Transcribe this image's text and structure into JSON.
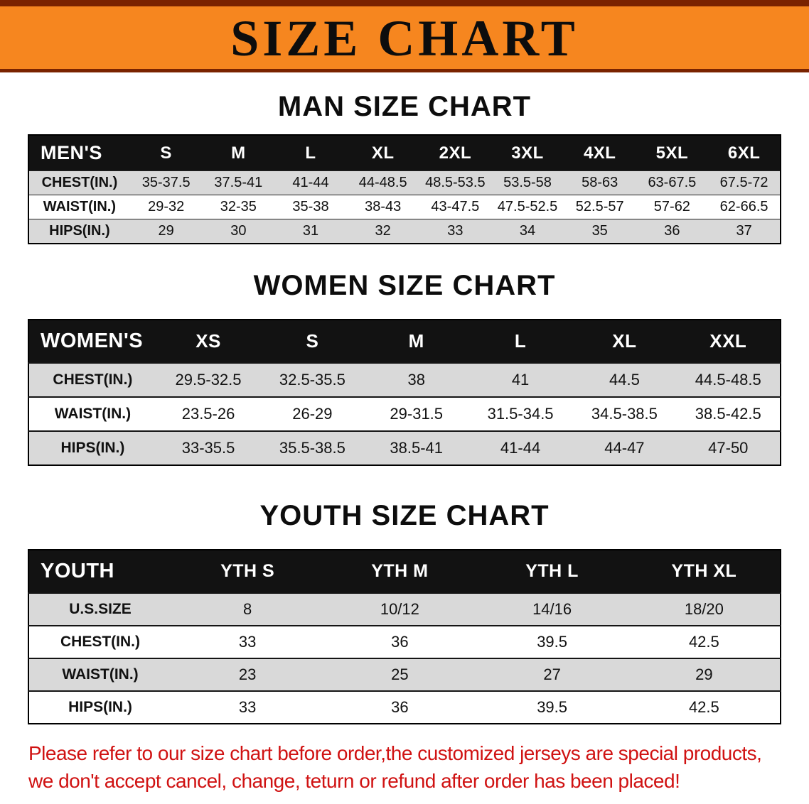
{
  "banner": {
    "title": "SIZE CHART"
  },
  "sections": [
    {
      "id": "men",
      "heading": "MAN SIZE CHART",
      "table": {
        "header": [
          "MEN'S",
          "S",
          "M",
          "L",
          "XL",
          "2XL",
          "3XL",
          "4XL",
          "5XL",
          "6XL"
        ],
        "rows": [
          [
            "CHEST(IN.)",
            "35-37.5",
            "37.5-41",
            "41-44",
            "44-48.5",
            "48.5-53.5",
            "53.5-58",
            "58-63",
            "63-67.5",
            "67.5-72"
          ],
          [
            "WAIST(IN.)",
            "29-32",
            "32-35",
            "35-38",
            "38-43",
            "43-47.5",
            "47.5-52.5",
            "52.5-57",
            "57-62",
            "62-66.5"
          ],
          [
            "HIPS(IN.)",
            "29",
            "30",
            "31",
            "32",
            "33",
            "34",
            "35",
            "36",
            "37"
          ]
        ]
      }
    },
    {
      "id": "women",
      "heading": "WOMEN SIZE CHART",
      "table": {
        "header": [
          "WOMEN'S",
          "XS",
          "S",
          "M",
          "L",
          "XL",
          "XXL"
        ],
        "rows": [
          [
            "CHEST(IN.)",
            "29.5-32.5",
            "32.5-35.5",
            "38",
            "41",
            "44.5",
            "44.5-48.5"
          ],
          [
            "WAIST(IN.)",
            "23.5-26",
            "26-29",
            "29-31.5",
            "31.5-34.5",
            "34.5-38.5",
            "38.5-42.5"
          ],
          [
            "HIPS(IN.)",
            "33-35.5",
            "35.5-38.5",
            "38.5-41",
            "41-44",
            "44-47",
            "47-50"
          ]
        ]
      }
    },
    {
      "id": "youth",
      "heading": "YOUTH SIZE CHART",
      "table": {
        "header": [
          "YOUTH",
          "YTH S",
          "YTH M",
          "YTH L",
          "YTH XL"
        ],
        "rows": [
          [
            "U.S.SIZE",
            "8",
            "10/12",
            "14/16",
            "18/20"
          ],
          [
            "CHEST(IN.)",
            "33",
            "36",
            "39.5",
            "42.5"
          ],
          [
            "WAIST(IN.)",
            "23",
            "25",
            "27",
            "29"
          ],
          [
            "HIPS(IN.)",
            "33",
            "36",
            "39.5",
            "42.5"
          ]
        ]
      }
    }
  ],
  "footer": {
    "line1": "Please refer to our size chart before order,the customized jerseys are special products,",
    "line2": "we don't accept cancel, change, teturn or refund after order has been placed!"
  },
  "colors": {
    "banner_orange": "#f6861f",
    "banner_strip": "#7a2300",
    "table_header_bg": "#121212",
    "row_gray": "#d9d9d9",
    "notice_red": "#d01212"
  }
}
